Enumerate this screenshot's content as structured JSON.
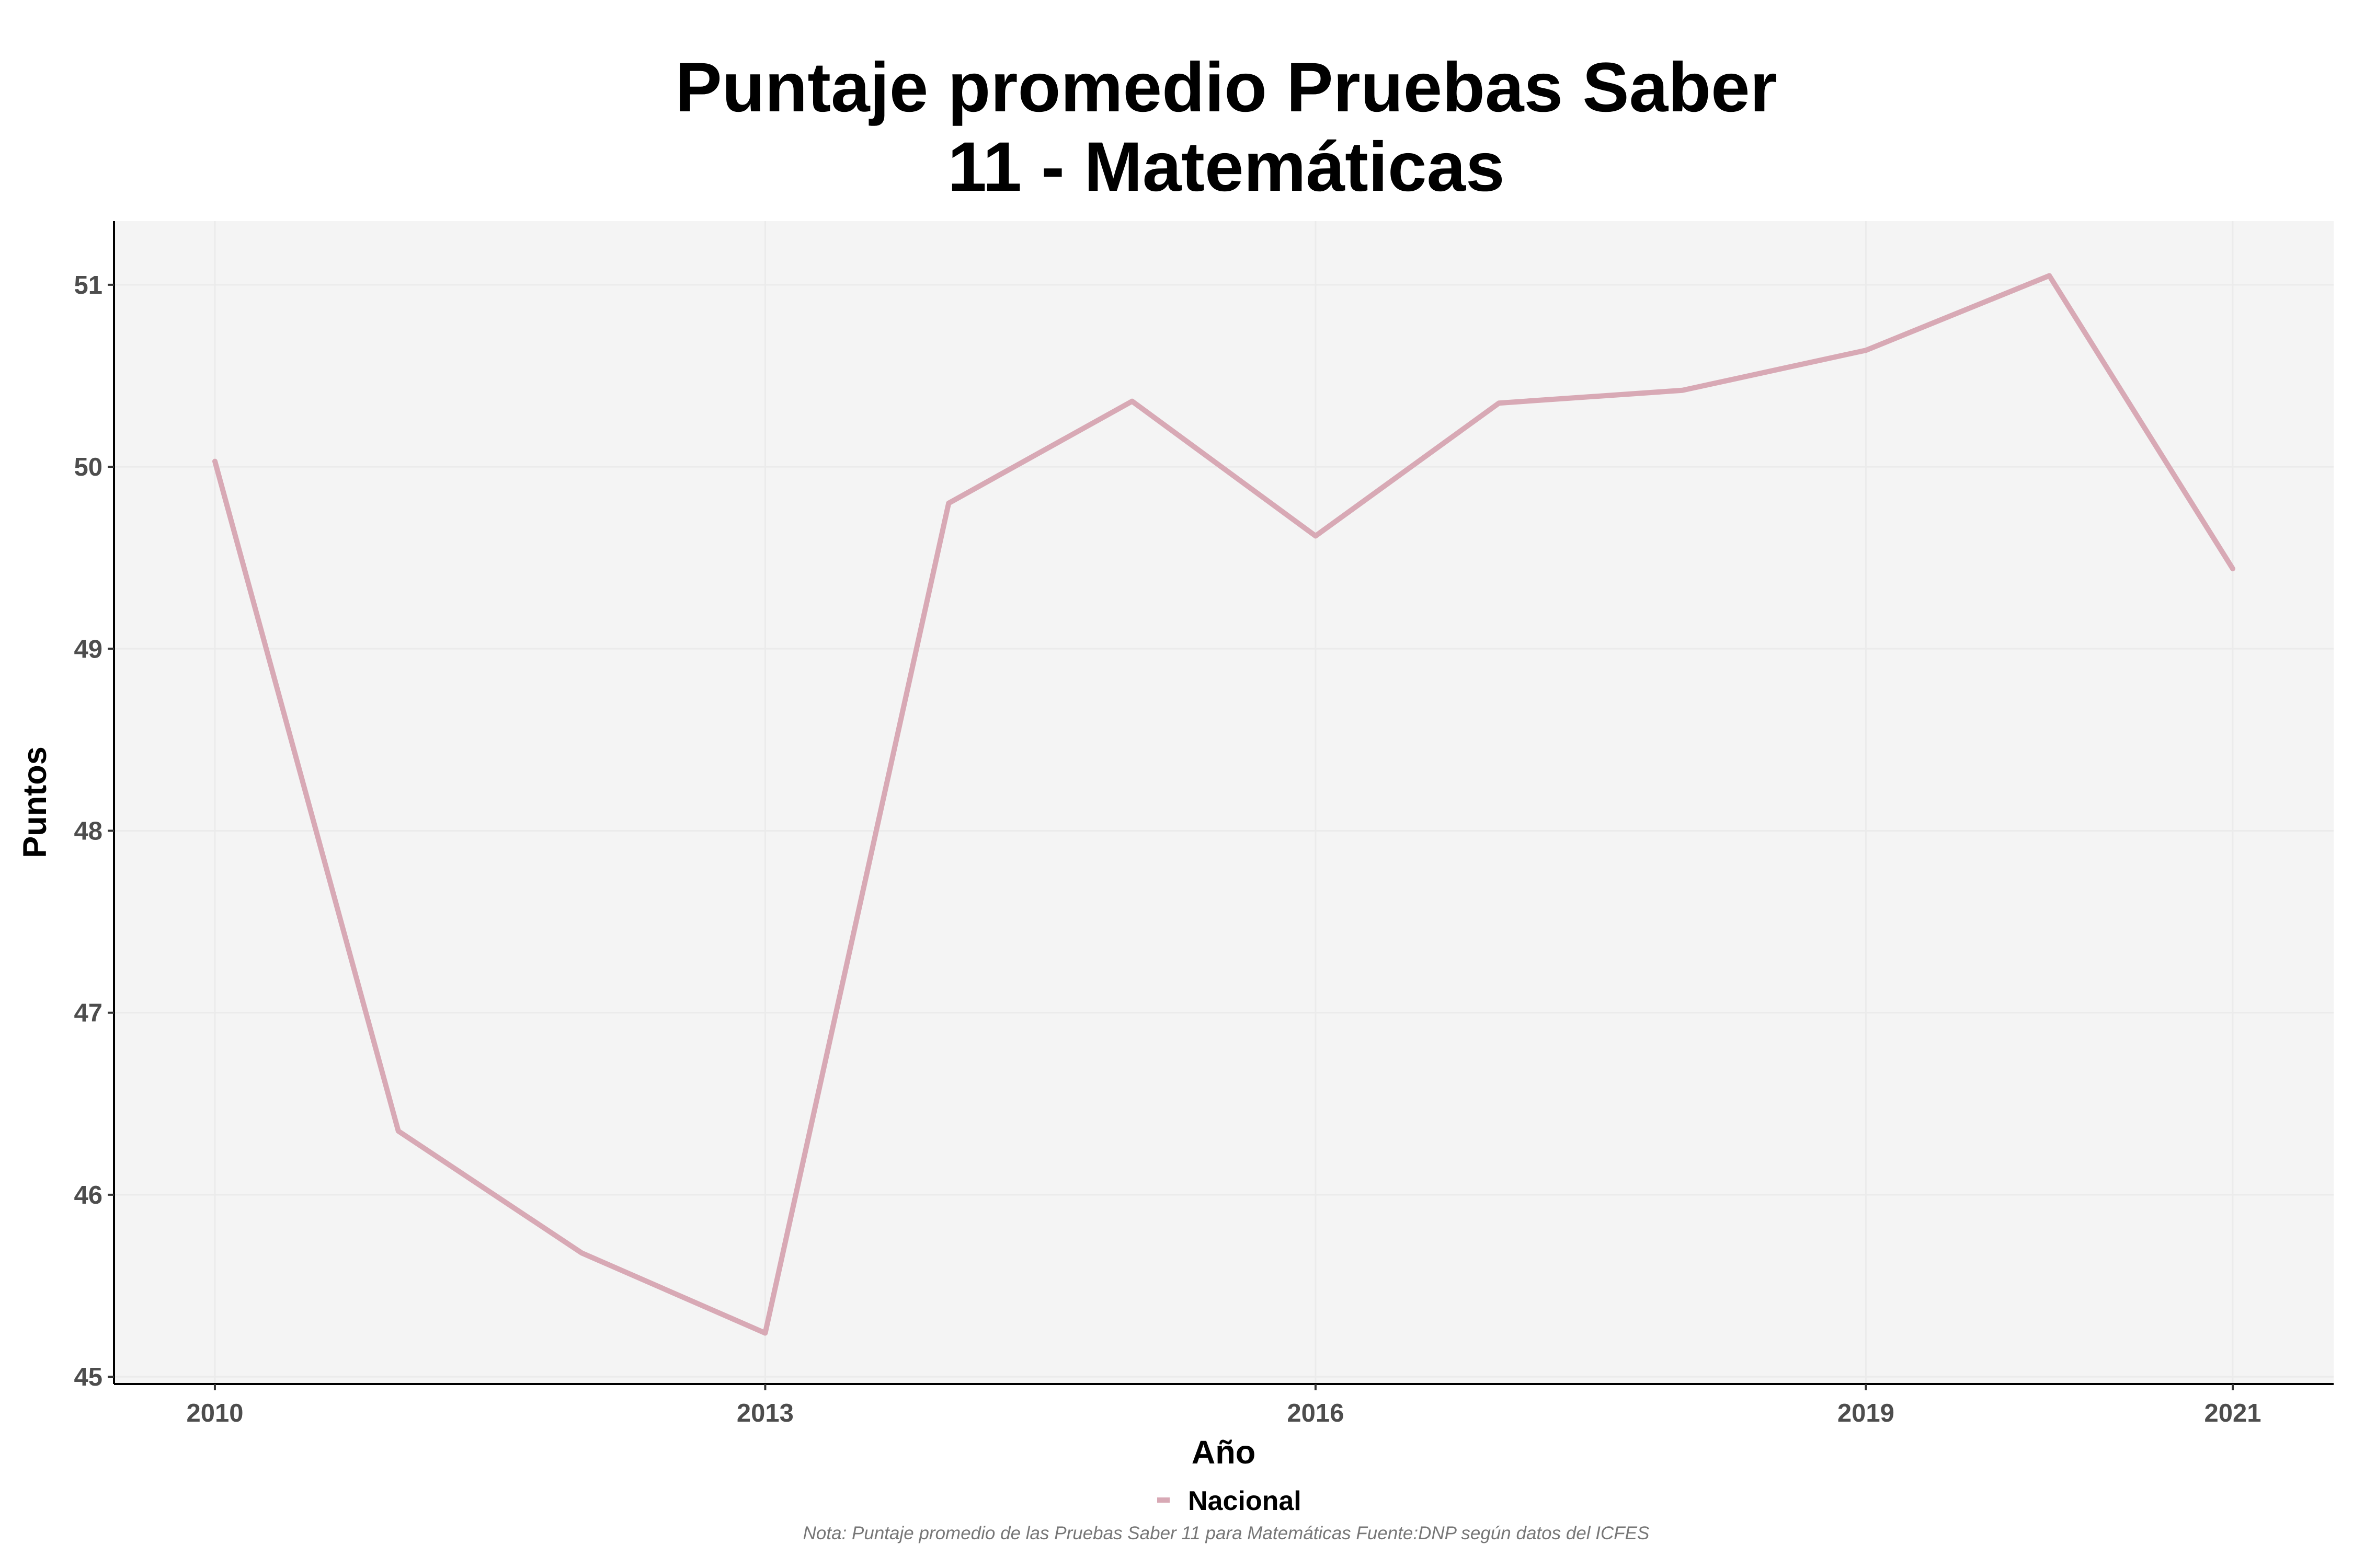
{
  "chart_data": {
    "type": "line",
    "title_lines": [
      "Puntaje promedio Pruebas Saber",
      "11 - Matemáticas"
    ],
    "xlabel": "Año",
    "ylabel": "Puntos",
    "x": [
      2010,
      2011,
      2012,
      2013,
      2014,
      2015,
      2016,
      2017,
      2018,
      2019,
      2020,
      2021
    ],
    "series": [
      {
        "name": "Nacional",
        "color": "#d8a9b5",
        "values": [
          50.03,
          46.35,
          45.68,
          45.24,
          49.8,
          50.36,
          49.62,
          50.35,
          50.42,
          50.64,
          51.05,
          49.44
        ]
      }
    ],
    "xlim": [
      2009.45,
      2021.55
    ],
    "ylim": [
      44.96,
      51.35
    ],
    "x_ticks": [
      "2010",
      "2013",
      "2016",
      "2019",
      "2021"
    ],
    "y_ticks": [
      "45",
      "46",
      "47",
      "48",
      "49",
      "50",
      "51"
    ],
    "grid": true,
    "legend_position": "bottom",
    "note": "Nota: Puntaje promedio de las Pruebas Saber 11 para Matemáticas Fuente:DNP según datos del ICFES",
    "panel_color": "#f4f4f4"
  }
}
